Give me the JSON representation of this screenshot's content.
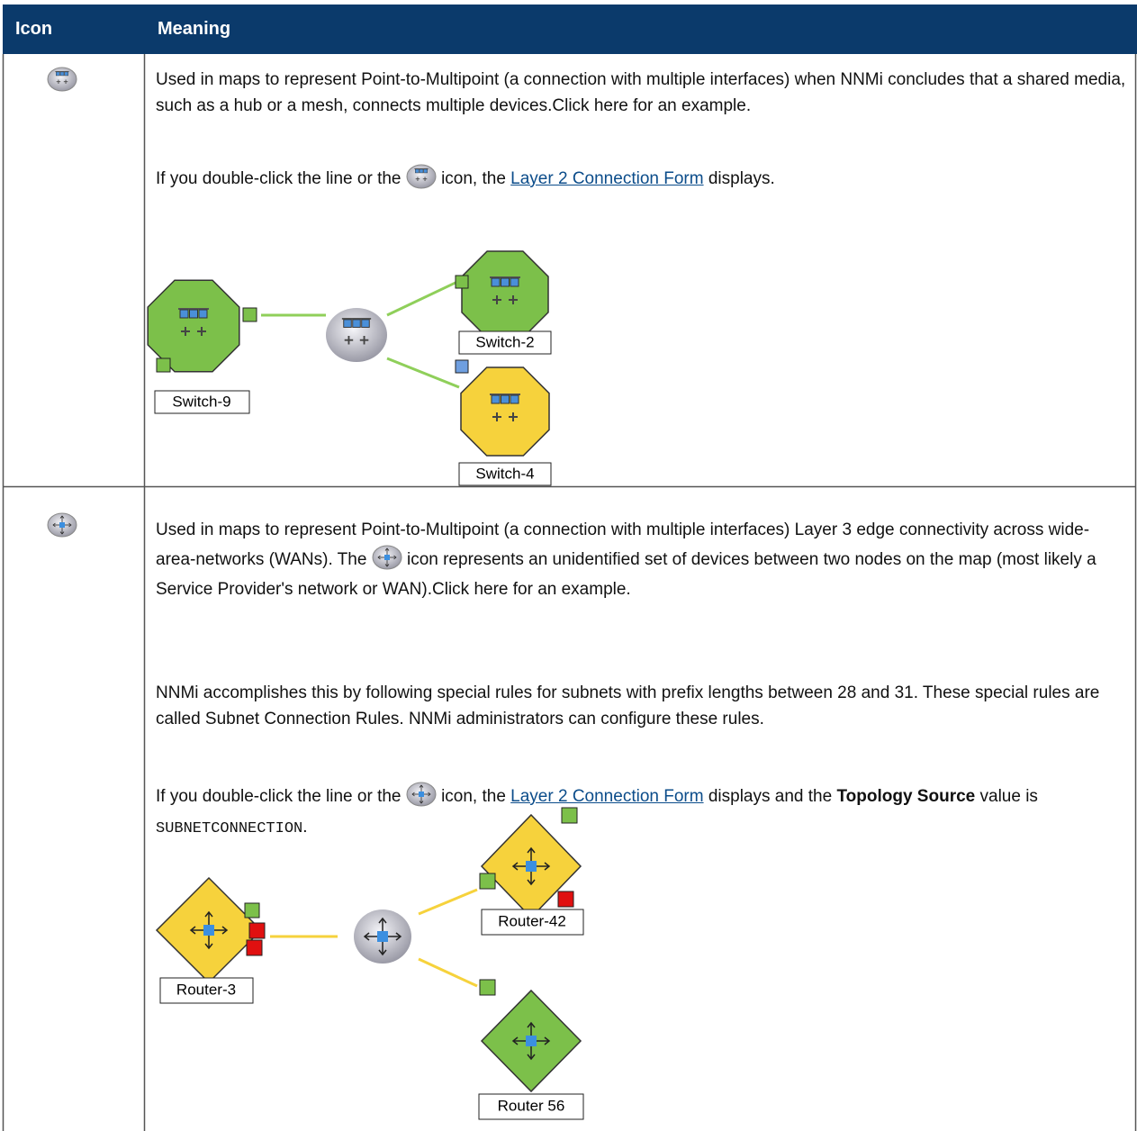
{
  "table": {
    "header": [
      "Icon",
      "Meaning"
    ],
    "rows": [
      {
        "intro": "Used in maps to represent Point-to-Multipoint (a connection with multiple interfaces) when NNMi concludes that a shared media, such as a hub or a mesh, connects multiple devices.Click here for an example.",
        "dblclick_before": "If you double-click the line or the",
        "dblclick_middle": "icon, the",
        "link": "Layer 2 Connection Form",
        "dblclick_end": "displays.",
        "labels": [
          "Switch-9",
          "Switch-2",
          "Switch-4"
        ]
      },
      {
        "intro_before": "Used in maps to represent Point-to-Multipoint (a connection with multiple interfaces) Layer 3 edge connectivity across wide-area-networks (WANs). The",
        "intro_after": "icon represents an unidentified set of devices between two nodes on the map (most likely a Service Provider's network or WAN).Click here for an example.",
        "rules": "NNMi accomplishes this by following special rules for subnets with prefix lengths between 28 and 31. These special rules are called Subnet Connection Rules. NNMi administrators can configure these rules.",
        "dblclick_before": "If you double-click the line or the",
        "dblclick_middle": "icon, the",
        "link": "Layer 2 Connection Form",
        "dblclick_end": "displays and the",
        "bold": "Topology Source",
        "value_before": "value is",
        "code": "SUBNETCONNECTION",
        "code_end": ".",
        "labels": [
          "Router-3",
          "Router-42",
          "Router 56"
        ]
      }
    ]
  }
}
